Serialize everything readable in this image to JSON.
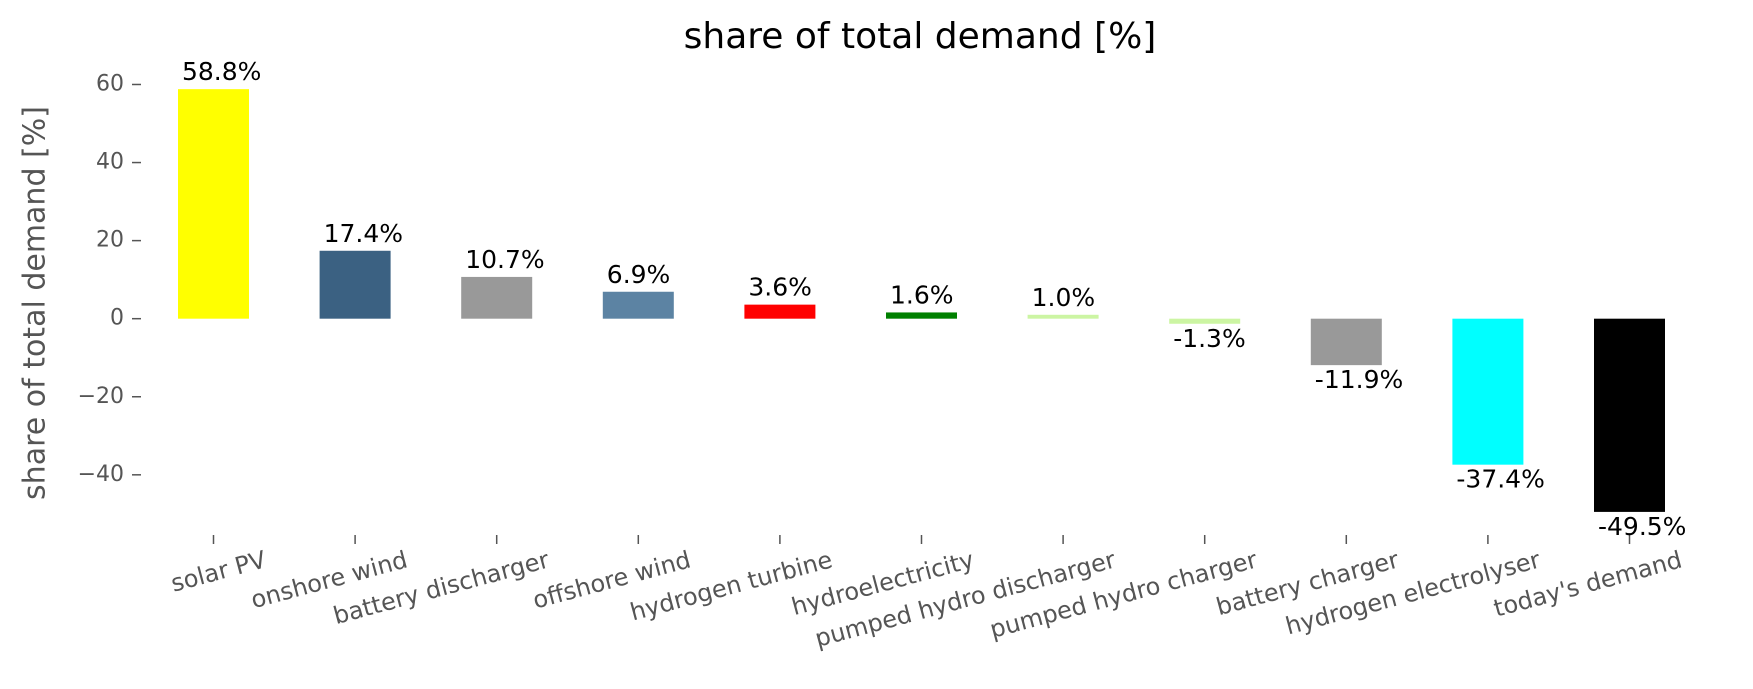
{
  "chart_data": {
    "type": "bar",
    "title": "share of total demand [%]",
    "y_label": "share of total demand [%]",
    "categories": [
      "solar PV",
      "onshore wind",
      "battery discharger",
      "offshore wind",
      "hydrogen turbine",
      "hydroelectricity",
      "pumped hydro discharger",
      "pumped hydro charger",
      "battery charger",
      "hydrogen electrolyser",
      "today's demand"
    ],
    "values": [
      58.8,
      17.4,
      10.7,
      6.9,
      3.6,
      1.6,
      1.0,
      -1.3,
      -11.9,
      -37.4,
      -49.5
    ],
    "value_labels": [
      "58.8%",
      "17.4%",
      "10.7%",
      "6.9%",
      "3.6%",
      "1.6%",
      "1.0%",
      "-1.3%",
      "-11.9%",
      "-37.4%",
      "-49.5%"
    ],
    "colors": [
      "#ffff00",
      "#3b6182",
      "#999999",
      "#5c83a3",
      "#ff0000",
      "#008000",
      "#ccf5a3",
      "#ccf5a3",
      "#999999",
      "#00ffff",
      "#000000"
    ],
    "ylim": [
      -56.8,
      64.3
    ],
    "yticks": [
      {
        "value": -40,
        "label": "−40"
      },
      {
        "value": -20,
        "label": "−20"
      },
      0,
      20,
      40,
      60
    ],
    "grid": false
  }
}
